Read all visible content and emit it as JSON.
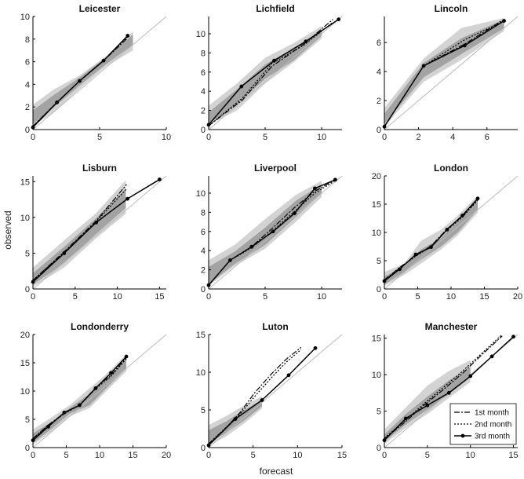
{
  "figure": {
    "xlabel": "forecast",
    "ylabel": "observed"
  },
  "chart_data": [
    {
      "type": "line",
      "title": "Leicester",
      "xlim": [
        0,
        10
      ],
      "ylim": [
        0,
        10
      ],
      "xticks": [
        0,
        5,
        10
      ],
      "yticks": [
        0,
        2,
        4,
        6,
        8,
        10
      ],
      "band_outer": {
        "x": [
          0,
          1.5,
          3.5,
          5.5,
          7.5
        ],
        "lo": [
          0.3,
          1.5,
          3.6,
          5.6,
          7.0
        ],
        "hi": [
          2.2,
          3.5,
          4.8,
          6.5,
          8.7
        ]
      },
      "band_inner": {
        "x": [
          0,
          1.5,
          3.5,
          5.5,
          7.5
        ],
        "lo": [
          0.5,
          1.9,
          3.9,
          5.8,
          7.5
        ],
        "hi": [
          1.7,
          3.0,
          4.6,
          6.4,
          8.4
        ]
      },
      "series": [
        {
          "name": "1st month",
          "x": [
            0,
            1.8,
            3.5,
            5.3,
            7.1
          ],
          "y": [
            0.3,
            2.4,
            4.3,
            6.1,
            8.1
          ]
        },
        {
          "name": "2nd month",
          "x": [
            0,
            1.8,
            3.5,
            5.3,
            7.1
          ],
          "y": [
            0.3,
            2.4,
            4.3,
            6.1,
            8.2
          ]
        },
        {
          "name": "3rd month",
          "x": [
            0,
            1.8,
            3.5,
            5.3,
            7.1
          ],
          "y": [
            0.2,
            2.4,
            4.3,
            6.1,
            8.3
          ]
        }
      ]
    },
    {
      "type": "line",
      "title": "Lichfield",
      "xlim": [
        0,
        11.8
      ],
      "ylim": [
        0,
        11.8
      ],
      "xticks": [
        0,
        5,
        10
      ],
      "yticks": [
        0,
        2,
        4,
        6,
        8,
        10
      ],
      "band_outer": {
        "x": [
          0,
          2.5,
          5,
          7.5,
          10
        ],
        "lo": [
          0.5,
          2.0,
          4.8,
          7.0,
          9.5
        ],
        "hi": [
          2.5,
          4.8,
          7.5,
          9.0,
          10.8
        ]
      },
      "band_inner": {
        "x": [
          0,
          2.5,
          5,
          7.5,
          10
        ],
        "lo": [
          0.6,
          2.6,
          5.3,
          7.2,
          9.8
        ],
        "hi": [
          1.8,
          4.2,
          6.8,
          8.5,
          10.4
        ]
      },
      "series": [
        {
          "name": "1st month",
          "x": [
            0,
            3,
            5.6,
            8.4,
            11
          ],
          "y": [
            0.4,
            3.1,
            6.6,
            8.9,
            11.5
          ]
        },
        {
          "name": "2nd month",
          "x": [
            0,
            3,
            5.6,
            8.4,
            11
          ],
          "y": [
            0.4,
            3.3,
            6.9,
            8.8,
            11.2
          ]
        },
        {
          "name": "3rd month",
          "x": [
            0,
            2.9,
            5.8,
            8.6,
            11.5
          ],
          "y": [
            0.5,
            4.5,
            7.2,
            9.2,
            11.5
          ]
        }
      ]
    },
    {
      "type": "line",
      "title": "Lincoln",
      "xlim": [
        0,
        7.8
      ],
      "ylim": [
        0,
        7.8
      ],
      "xticks": [
        0,
        2,
        4,
        6
      ],
      "yticks": [
        0,
        2,
        4,
        6
      ],
      "band_outer": {
        "x": [
          0,
          2.3,
          4.5,
          7
        ],
        "lo": [
          0.2,
          3.3,
          4.8,
          6.8
        ],
        "hi": [
          1.5,
          4.9,
          7.0,
          7.7
        ]
      },
      "band_inner": {
        "x": [
          0,
          2.3,
          4.5,
          7
        ],
        "lo": [
          0.4,
          3.6,
          5.2,
          7.0
        ],
        "hi": [
          1.1,
          4.6,
          6.3,
          7.6
        ]
      },
      "series": [
        {
          "name": "1st month",
          "x": [
            0,
            2.3,
            4.7,
            7
          ],
          "y": [
            0.2,
            4.4,
            5.9,
            7.6
          ]
        },
        {
          "name": "2nd month",
          "x": [
            0,
            2.3,
            4.7,
            7
          ],
          "y": [
            0.2,
            4.4,
            6.2,
            7.5
          ]
        },
        {
          "name": "3rd month",
          "x": [
            0,
            2.3,
            4.7,
            7
          ],
          "y": [
            0.2,
            4.4,
            5.8,
            7.5
          ]
        }
      ]
    },
    {
      "type": "line",
      "title": "Lisburn",
      "xlim": [
        0,
        15.8
      ],
      "ylim": [
        0,
        15.8
      ],
      "xticks": [
        0,
        5,
        10,
        15
      ],
      "yticks": [
        0,
        5,
        10,
        15
      ],
      "band_outer": {
        "x": [
          0,
          3.7,
          7.4,
          11
        ],
        "lo": [
          0.3,
          3.0,
          7.0,
          10.5
        ],
        "hi": [
          3.0,
          6.8,
          10.5,
          15.2
        ]
      },
      "band_inner": {
        "x": [
          0,
          3.7,
          7.4,
          11
        ],
        "lo": [
          0.6,
          3.6,
          7.6,
          11.3
        ],
        "hi": [
          2.2,
          5.9,
          9.8,
          14.0
        ]
      },
      "series": [
        {
          "name": "1st month",
          "x": [
            0,
            3.7,
            7.4,
            11.1
          ],
          "y": [
            1.2,
            5.2,
            9.4,
            14.6
          ]
        },
        {
          "name": "2nd month",
          "x": [
            0,
            3.7,
            7.4,
            11.1
          ],
          "y": [
            1.2,
            5.1,
            9.3,
            14.0
          ]
        },
        {
          "name": "3rd month",
          "x": [
            0,
            3.7,
            7.5,
            11.2,
            15
          ],
          "y": [
            1.0,
            5.0,
            9.3,
            12.6,
            15.3
          ]
        }
      ]
    },
    {
      "type": "line",
      "title": "Liverpool",
      "xlim": [
        0,
        11.8
      ],
      "ylim": [
        0,
        11.8
      ],
      "xticks": [
        0,
        5,
        10
      ],
      "yticks": [
        0,
        2,
        4,
        6,
        8,
        10
      ],
      "band_outer": {
        "x": [
          0,
          2.3,
          5,
          7.7,
          10
        ],
        "lo": [
          0.3,
          2.4,
          4.2,
          7.0,
          9.6
        ],
        "hi": [
          3.0,
          4.6,
          7.3,
          9.8,
          11.3
        ]
      },
      "band_inner": {
        "x": [
          0,
          2.3,
          5,
          7.7,
          10
        ],
        "lo": [
          0.5,
          2.6,
          4.6,
          7.5,
          10.0
        ],
        "hi": [
          2.3,
          3.9,
          6.4,
          9.2,
          10.9
        ]
      },
      "series": [
        {
          "name": "1st month",
          "x": [
            0,
            1.9,
            3.8,
            5.7,
            7.6,
            9.4,
            11.2
          ],
          "y": [
            0.4,
            3.0,
            4.4,
            6.4,
            8.5,
            10.2,
            11.4
          ]
        },
        {
          "name": "2nd month",
          "x": [
            0,
            1.9,
            3.8,
            5.7,
            7.6,
            9.4,
            11.2
          ],
          "y": [
            0.4,
            3.0,
            4.3,
            6.1,
            8.1,
            10.0,
            11.3
          ]
        },
        {
          "name": "3rd month",
          "x": [
            0,
            1.9,
            3.8,
            5.7,
            7.6,
            9.4,
            11.2
          ],
          "y": [
            0.4,
            3.0,
            4.4,
            6.0,
            7.9,
            10.5,
            11.4
          ]
        }
      ]
    },
    {
      "type": "line",
      "title": "London",
      "xlim": [
        0,
        20
      ],
      "ylim": [
        0,
        20
      ],
      "xticks": [
        0,
        5,
        10,
        15,
        20
      ],
      "yticks": [
        0,
        5,
        10,
        15,
        20
      ],
      "band_outer": {
        "x": [
          0,
          3,
          5.5,
          8.5,
          11,
          14
        ],
        "lo": [
          0.5,
          2.5,
          4.5,
          7.0,
          9.5,
          13.5
        ],
        "hi": [
          3.0,
          4.5,
          8.5,
          10.5,
          13.0,
          16.5
        ]
      },
      "band_inner": {
        "x": [
          0,
          3,
          5.5,
          8.5,
          11,
          14
        ],
        "lo": [
          0.8,
          3.0,
          5.2,
          7.5,
          10.0,
          14.0
        ],
        "hi": [
          2.2,
          4.0,
          7.0,
          9.0,
          12.0,
          15.8
        ]
      },
      "series": [
        {
          "name": "1st month",
          "x": [
            0,
            2.3,
            4.7,
            7,
            9.4,
            11.7,
            14
          ],
          "y": [
            1.6,
            3.8,
            5.9,
            7.6,
            10.6,
            12.9,
            15.8
          ]
        },
        {
          "name": "2nd month",
          "x": [
            0,
            2.3,
            4.7,
            7,
            9.4,
            11.7,
            14
          ],
          "y": [
            1.5,
            3.7,
            5.8,
            7.5,
            10.4,
            12.7,
            15.7
          ]
        },
        {
          "name": "3rd month",
          "x": [
            0,
            2.3,
            4.7,
            7,
            9.4,
            11.7,
            14
          ],
          "y": [
            1.4,
            3.5,
            6.1,
            7.4,
            10.5,
            13.0,
            16.0
          ]
        }
      ]
    },
    {
      "type": "line",
      "title": "Londonderry",
      "xlim": [
        0,
        20
      ],
      "ylim": [
        0,
        20
      ],
      "xticks": [
        0,
        5,
        10,
        15,
        20
      ],
      "yticks": [
        0,
        5,
        10,
        15,
        20
      ],
      "band_outer": {
        "x": [
          0,
          3,
          5.5,
          8.5,
          11,
          14
        ],
        "lo": [
          0.5,
          3.0,
          5.5,
          7.0,
          10.0,
          13.5
        ],
        "hi": [
          3.2,
          5.5,
          7.5,
          10.5,
          13.0,
          16.5
        ]
      },
      "band_inner": {
        "x": [
          0,
          3,
          5.5,
          8.5,
          11,
          14
        ],
        "lo": [
          0.8,
          3.5,
          6.0,
          7.5,
          10.5,
          14.0
        ],
        "hi": [
          2.5,
          4.7,
          7.0,
          9.5,
          12.0,
          15.8
        ]
      },
      "series": [
        {
          "name": "1st month",
          "x": [
            0,
            2.3,
            4.7,
            7,
            9.4,
            11.7,
            14
          ],
          "y": [
            1.6,
            4.0,
            6.1,
            7.5,
            10.6,
            12.8,
            15.9
          ]
        },
        {
          "name": "2nd month",
          "x": [
            0,
            2.3,
            4.7,
            7,
            9.4,
            11.7,
            14
          ],
          "y": [
            1.5,
            3.9,
            6.0,
            7.5,
            10.4,
            12.6,
            15.7
          ]
        },
        {
          "name": "3rd month",
          "x": [
            0,
            2.3,
            4.7,
            7,
            9.4,
            11.7,
            14
          ],
          "y": [
            1.3,
            3.7,
            6.2,
            7.5,
            10.5,
            13.2,
            16.1
          ]
        }
      ]
    },
    {
      "type": "line",
      "title": "Luton",
      "xlim": [
        0,
        15
      ],
      "ylim": [
        0,
        15
      ],
      "xticks": [
        0,
        5,
        10,
        15
      ],
      "yticks": [
        0,
        5,
        10,
        15
      ],
      "band_outer": {
        "x": [
          0,
          2,
          4,
          6
        ],
        "lo": [
          0.3,
          1.5,
          3.2,
          5.2
        ],
        "hi": [
          3.0,
          4.2,
          5.6,
          6.8
        ]
      },
      "band_inner": {
        "x": [
          0,
          2,
          4,
          6
        ],
        "lo": [
          0.6,
          2.0,
          3.6,
          5.5
        ],
        "hi": [
          2.3,
          3.5,
          5.0,
          6.3
        ]
      },
      "series": [
        {
          "name": "1st month",
          "x": [
            0,
            1.7,
            3.5,
            5.2,
            7,
            8.7,
            10.4
          ],
          "y": [
            0.5,
            2.3,
            4.6,
            7.3,
            9.7,
            11.7,
            13.3
          ]
        },
        {
          "name": "2nd month",
          "x": [
            0,
            1.7,
            3.5,
            5.2,
            7,
            8.7,
            10.4
          ],
          "y": [
            0.5,
            2.4,
            4.4,
            6.8,
            9.2,
            11.3,
            13.0
          ]
        },
        {
          "name": "3rd month",
          "x": [
            0,
            3,
            6,
            9,
            12
          ],
          "y": [
            0.3,
            3.8,
            6.3,
            9.6,
            13.2
          ]
        }
      ]
    },
    {
      "type": "line",
      "title": "Manchester",
      "xlim": [
        0,
        15.5
      ],
      "ylim": [
        0,
        15.5
      ],
      "xticks": [
        0,
        5,
        10,
        15
      ],
      "yticks": [
        0,
        5,
        10,
        15
      ],
      "band_outer": {
        "x": [
          0,
          2.5,
          5,
          7.5,
          10
        ],
        "lo": [
          0.5,
          2.7,
          4.6,
          6.8,
          9.0
        ],
        "hi": [
          2.5,
          5.5,
          8.5,
          10.5,
          12.0
        ]
      },
      "band_inner": {
        "x": [
          0,
          2.5,
          5,
          7.5,
          10
        ],
        "lo": [
          0.8,
          3.2,
          5.2,
          7.3,
          9.6
        ],
        "hi": [
          1.8,
          4.6,
          7.0,
          9.2,
          11.0
        ]
      },
      "series": [
        {
          "name": "1st month",
          "x": [
            0,
            2.3,
            4.6,
            6.8,
            9.1,
            11.4,
            13.7
          ],
          "y": [
            1.2,
            3.4,
            5.8,
            7.9,
            10.2,
            12.8,
            15.3
          ]
        },
        {
          "name": "2nd month",
          "x": [
            0,
            2.3,
            4.6,
            6.8,
            9.1,
            11.4,
            13.7
          ],
          "y": [
            1.3,
            3.6,
            6.0,
            8.2,
            10.5,
            13.0,
            15.5
          ]
        },
        {
          "name": "3rd month",
          "x": [
            0,
            2.5,
            5,
            7.5,
            10,
            12.5,
            15
          ],
          "y": [
            1.0,
            4.0,
            5.8,
            7.5,
            9.8,
            12.5,
            15.2
          ]
        }
      ],
      "legend": {
        "position": "bottom-right",
        "entries": [
          "1st month",
          "2nd month",
          "3rd month"
        ]
      }
    }
  ]
}
